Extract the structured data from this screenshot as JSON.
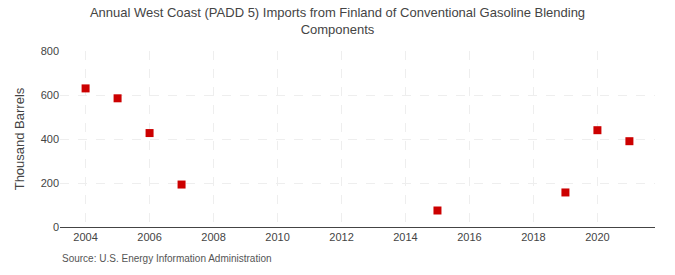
{
  "chart_data": {
    "type": "scatter",
    "title": "Annual West Coast (PADD 5) Imports from Finland of Conventional Gasoline Blending\nComponents",
    "ylabel": "Thousand Barrels",
    "source": "Source: U.S. Energy Information Administration",
    "x": [
      2004,
      2005,
      2006,
      2007,
      2015,
      2019,
      2020,
      2021
    ],
    "values": [
      630,
      585,
      427,
      193,
      75,
      157,
      440,
      390
    ],
    "color": "#cc0000",
    "marker": "square",
    "xlim": [
      2003.2,
      2021.8
    ],
    "ylim": [
      0,
      800
    ],
    "xticks": [
      2004,
      2006,
      2008,
      2010,
      2012,
      2014,
      2016,
      2018,
      2020
    ],
    "yticks": [
      0,
      200,
      400,
      600,
      800
    ],
    "grid": true
  }
}
